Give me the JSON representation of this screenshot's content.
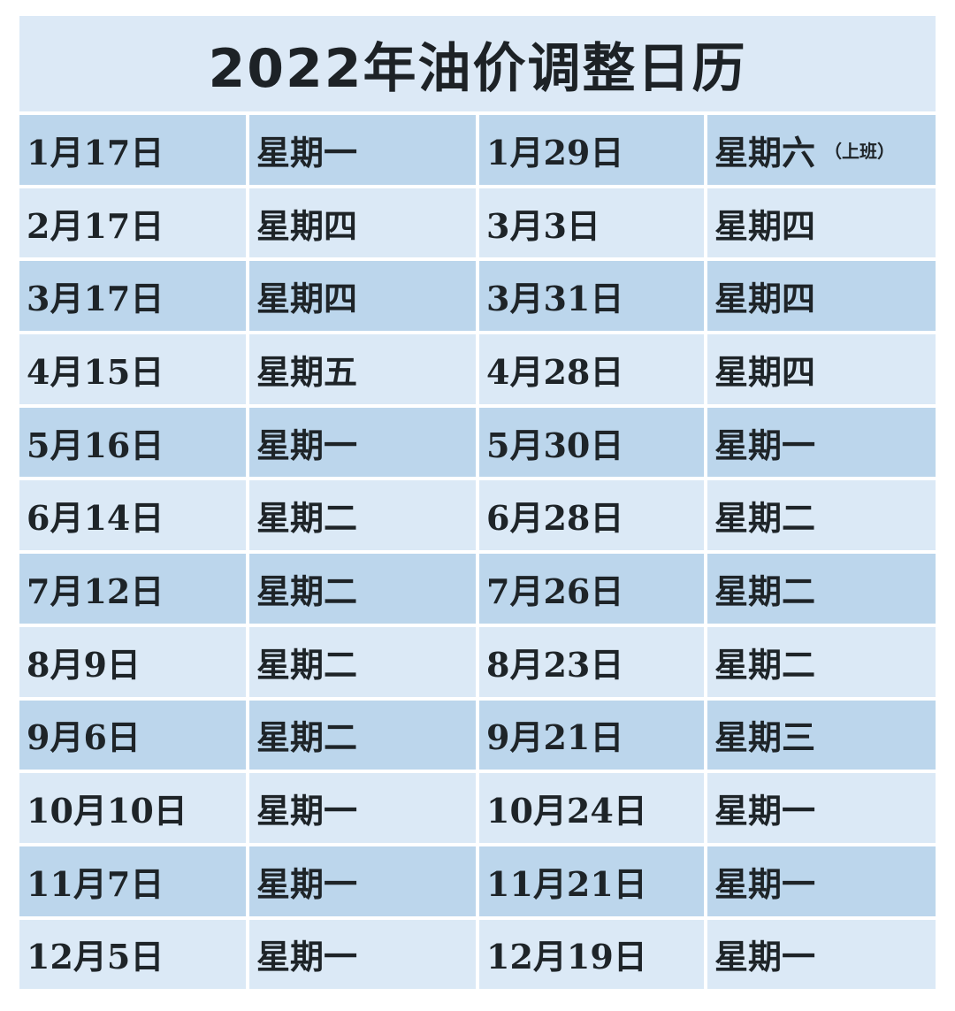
{
  "title": "2022年油价调整日历",
  "colors": {
    "title_bg": "#dce9f6",
    "row_dark": "#bcd6ec",
    "row_light": "#dbe9f6",
    "text": "#1e2428"
  },
  "rows": [
    {
      "date1": "1月17日",
      "day1": "星期一",
      "date2": "1月29日",
      "day2": "星期六",
      "note2": "（上班）"
    },
    {
      "date1": "2月17日",
      "day1": "星期四",
      "date2": "3月3日",
      "day2": "星期四"
    },
    {
      "date1": "3月17日",
      "day1": "星期四",
      "date2": "3月31日",
      "day2": "星期四"
    },
    {
      "date1": "4月15日",
      "day1": "星期五",
      "date2": "4月28日",
      "day2": "星期四"
    },
    {
      "date1": "5月16日",
      "day1": "星期一",
      "date2": "5月30日",
      "day2": "星期一"
    },
    {
      "date1": "6月14日",
      "day1": "星期二",
      "date2": "6月28日",
      "day2": "星期二"
    },
    {
      "date1": "7月12日",
      "day1": "星期二",
      "date2": "7月26日",
      "day2": "星期二"
    },
    {
      "date1": "8月9日",
      "day1": "星期二",
      "date2": "8月23日",
      "day2": "星期二"
    },
    {
      "date1": "9月6日",
      "day1": "星期二",
      "date2": "9月21日",
      "day2": "星期三"
    },
    {
      "date1": "10月10日",
      "day1": "星期一",
      "date2": "10月24日",
      "day2": "星期一"
    },
    {
      "date1": "11月7日",
      "day1": "星期一",
      "date2": "11月21日",
      "day2": "星期一"
    },
    {
      "date1": "12月5日",
      "day1": "星期一",
      "date2": "12月19日",
      "day2": "星期一"
    }
  ]
}
